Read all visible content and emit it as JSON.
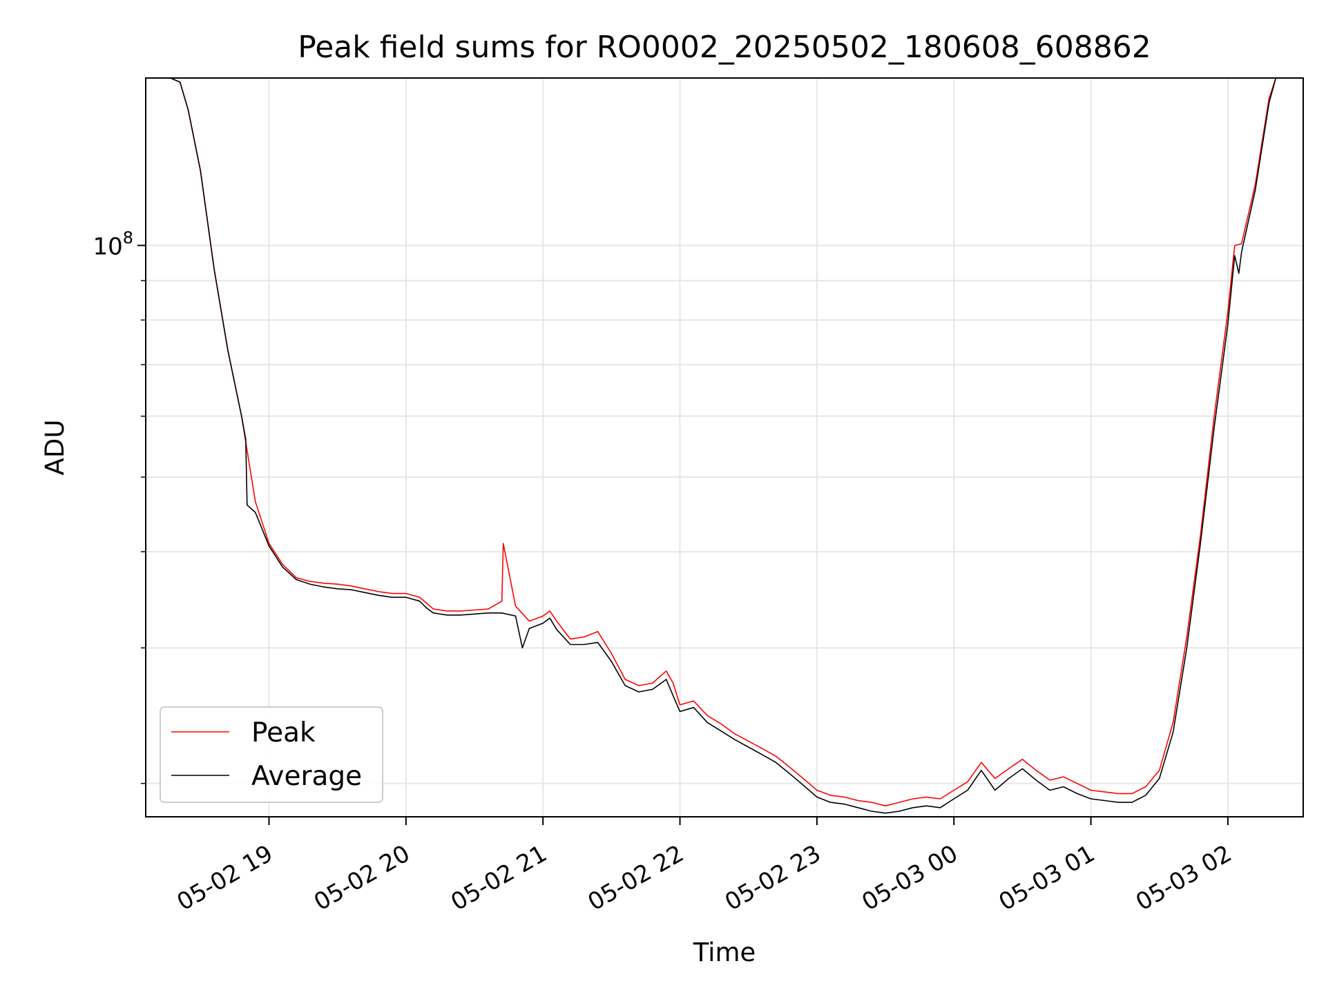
{
  "chart_data": {
    "type": "line",
    "title": "Peak field sums for RO0002_20250502_180608_608862",
    "xlabel": "Time",
    "ylabel": "ADU",
    "yscale": "log",
    "xlim": [
      -0.9,
      7.55
    ],
    "ylim": [
      18100000,
      165000000
    ],
    "grid": true,
    "legend_position": "lower-left",
    "x_ticks": [
      {
        "value": 0,
        "label": "05-02 19"
      },
      {
        "value": 1,
        "label": "05-02 20"
      },
      {
        "value": 2,
        "label": "05-02 21"
      },
      {
        "value": 3,
        "label": "05-02 22"
      },
      {
        "value": 4,
        "label": "05-02 23"
      },
      {
        "value": 5,
        "label": "05-03 00"
      },
      {
        "value": 6,
        "label": "05-03 01"
      },
      {
        "value": 7,
        "label": "05-03 02"
      }
    ],
    "y_major_ticks": [
      {
        "value": 100000000,
        "base": "10",
        "exponent": "8"
      }
    ],
    "y_minor_ticks": [
      20000000,
      30000000,
      40000000,
      50000000,
      60000000,
      70000000,
      80000000,
      90000000
    ],
    "series": [
      {
        "name": "Peak",
        "color": "#ff0000",
        "x": [
          -0.72,
          -0.65,
          -0.59,
          -0.5,
          -0.4,
          -0.3,
          -0.2,
          -0.1,
          0.0,
          0.1,
          0.2,
          0.3,
          0.4,
          0.5,
          0.6,
          0.7,
          0.8,
          0.9,
          1.0,
          1.1,
          1.15,
          1.2,
          1.3,
          1.4,
          1.5,
          1.6,
          1.7,
          1.71,
          1.8,
          1.9,
          2.0,
          2.05,
          2.1,
          2.2,
          2.3,
          2.4,
          2.5,
          2.6,
          2.7,
          2.8,
          2.9,
          2.95,
          3.0,
          3.1,
          3.2,
          3.3,
          3.4,
          3.5,
          3.6,
          3.7,
          3.8,
          3.9,
          4.0,
          4.1,
          4.2,
          4.3,
          4.4,
          4.5,
          4.6,
          4.7,
          4.8,
          4.9,
          5.0,
          5.1,
          5.2,
          5.3,
          5.4,
          5.5,
          5.6,
          5.7,
          5.8,
          5.9,
          6.0,
          6.1,
          6.2,
          6.3,
          6.4,
          6.5,
          6.6,
          6.7,
          6.8,
          6.9,
          7.0,
          7.05,
          7.1,
          7.2,
          7.3,
          7.35
        ],
        "y": [
          165000000,
          163000000,
          150000000,
          125000000,
          93000000,
          73000000,
          60000000,
          46500000,
          41000000,
          38500000,
          37000000,
          36600000,
          36400000,
          36300000,
          36100000,
          35800000,
          35500000,
          35300000,
          35300000,
          34900000,
          34300000,
          33700000,
          33500000,
          33500000,
          33600000,
          33700000,
          34500000,
          41000000,
          34000000,
          32500000,
          33000000,
          33500000,
          32500000,
          30800000,
          31000000,
          31500000,
          29500000,
          27300000,
          26800000,
          27000000,
          28000000,
          27000000,
          25300000,
          25600000,
          24500000,
          23900000,
          23200000,
          22700000,
          22200000,
          21700000,
          21000000,
          20300000,
          19600000,
          19300000,
          19200000,
          19000000,
          18900000,
          18700000,
          18900000,
          19100000,
          19200000,
          19100000,
          19600000,
          20100000,
          21300000,
          20300000,
          20900000,
          21500000,
          20800000,
          20200000,
          20400000,
          20000000,
          19600000,
          19500000,
          19400000,
          19400000,
          19800000,
          20800000,
          24000000,
          31000000,
          42000000,
          60000000,
          82000000,
          100000000,
          100500000,
          120000000,
          155000000,
          165000000
        ]
      },
      {
        "name": "Average",
        "color": "#000000",
        "x": [
          -0.72,
          -0.65,
          -0.59,
          -0.5,
          -0.4,
          -0.3,
          -0.2,
          -0.17,
          -0.16,
          -0.1,
          0.0,
          0.1,
          0.2,
          0.3,
          0.4,
          0.5,
          0.6,
          0.7,
          0.8,
          0.9,
          1.0,
          1.1,
          1.15,
          1.2,
          1.3,
          1.4,
          1.5,
          1.6,
          1.7,
          1.8,
          1.85,
          1.9,
          2.0,
          2.05,
          2.1,
          2.2,
          2.3,
          2.4,
          2.5,
          2.6,
          2.7,
          2.8,
          2.9,
          2.95,
          3.0,
          3.1,
          3.2,
          3.3,
          3.4,
          3.5,
          3.6,
          3.7,
          3.8,
          3.9,
          4.0,
          4.1,
          4.2,
          4.3,
          4.4,
          4.5,
          4.6,
          4.7,
          4.8,
          4.9,
          5.0,
          5.1,
          5.2,
          5.3,
          5.4,
          5.5,
          5.6,
          5.7,
          5.8,
          5.9,
          6.0,
          6.1,
          6.2,
          6.3,
          6.4,
          6.5,
          6.6,
          6.7,
          6.8,
          6.9,
          7.0,
          7.05,
          7.08,
          7.1,
          7.2,
          7.3,
          7.35
        ],
        "y": [
          165000000,
          163000000,
          150000000,
          125000000,
          93000000,
          73000000,
          60000000,
          56000000,
          46000000,
          45000000,
          40700000,
          38200000,
          36800000,
          36300000,
          36000000,
          35800000,
          35700000,
          35400000,
          35100000,
          34900000,
          34900000,
          34500000,
          33800000,
          33300000,
          33100000,
          33100000,
          33200000,
          33300000,
          33300000,
          33000000,
          30000000,
          31800000,
          32300000,
          32800000,
          31700000,
          30300000,
          30300000,
          30500000,
          28800000,
          26800000,
          26300000,
          26500000,
          27300000,
          26000000,
          24800000,
          25100000,
          24000000,
          23400000,
          22800000,
          22300000,
          21800000,
          21300000,
          20600000,
          19900000,
          19200000,
          18900000,
          18800000,
          18600000,
          18400000,
          18300000,
          18400000,
          18600000,
          18700000,
          18600000,
          19100000,
          19600000,
          20800000,
          19600000,
          20300000,
          20900000,
          20200000,
          19600000,
          19800000,
          19400000,
          19100000,
          19000000,
          18900000,
          18900000,
          19300000,
          20300000,
          23300000,
          30000000,
          41000000,
          58000000,
          79000000,
          97000000,
          92000000,
          98000000,
          118000000,
          153000000,
          165000000
        ]
      }
    ]
  }
}
